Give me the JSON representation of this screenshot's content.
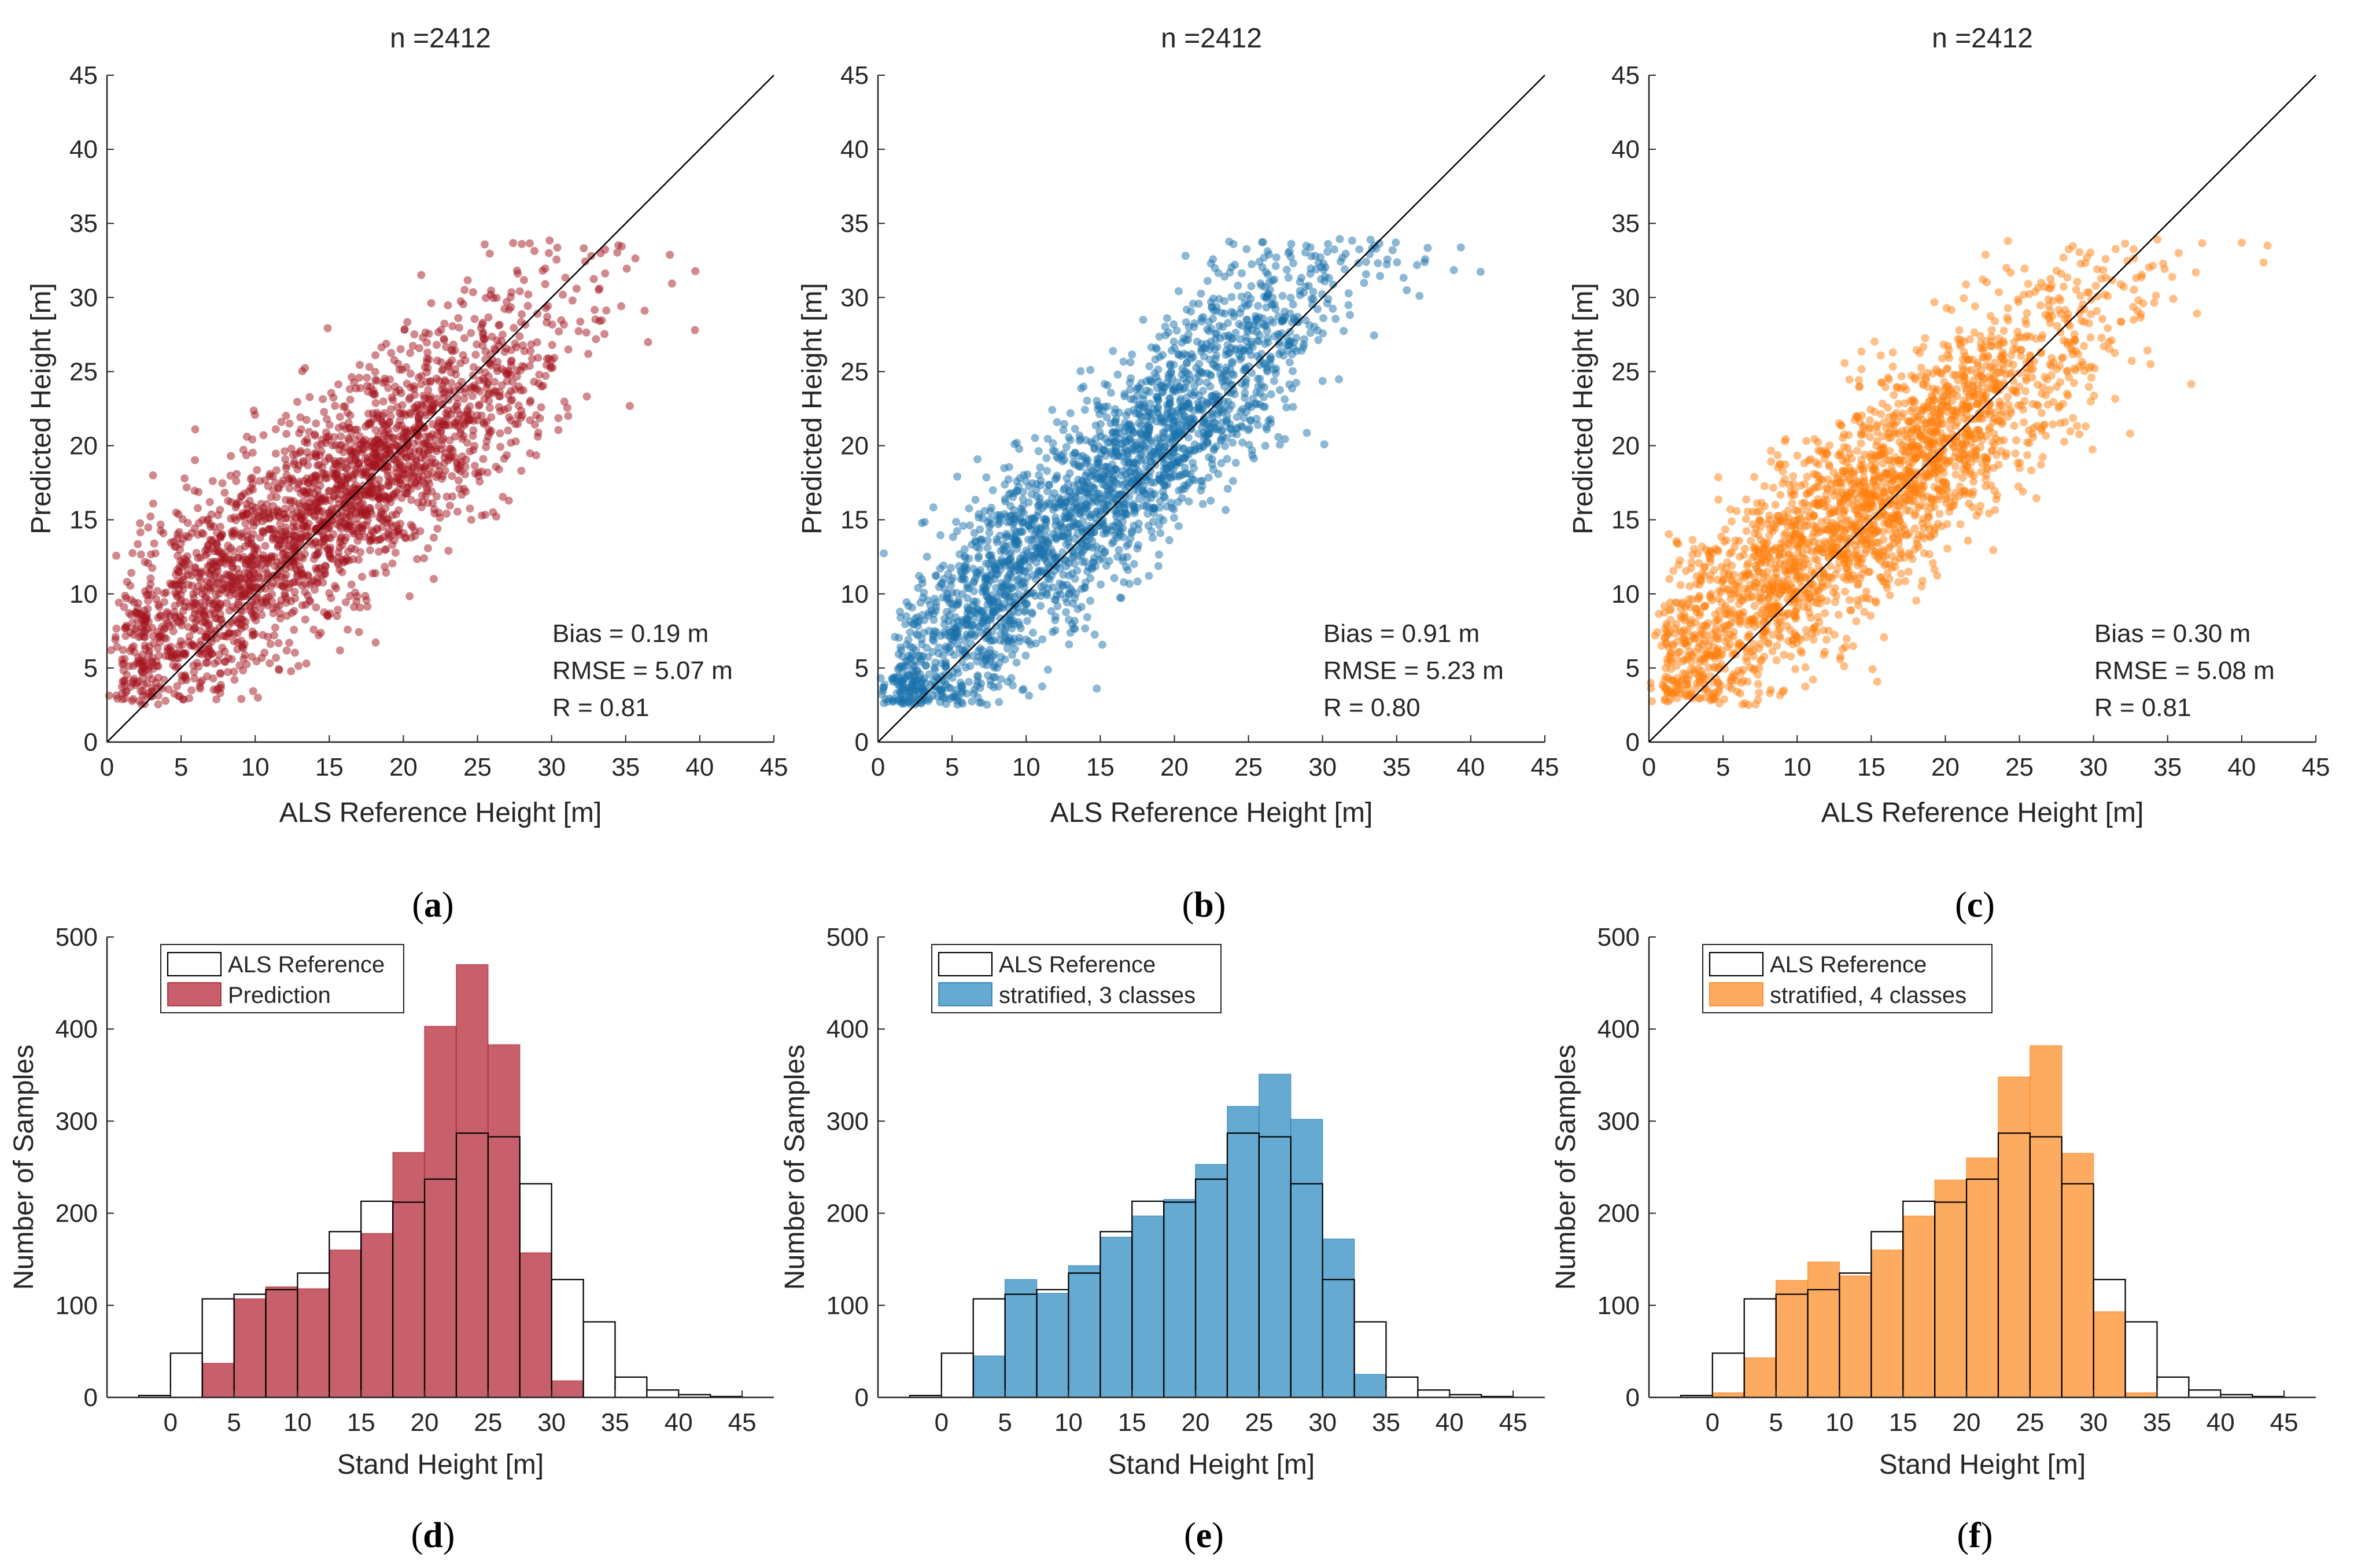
{
  "colors": {
    "a": "#a3141e",
    "b": "#1a72ab",
    "c": "#ff7f0e",
    "a_bar": "#c7606a",
    "b_bar": "#66aad2",
    "c_bar": "#fcab61",
    "axis": "#262626"
  },
  "chart_data": [
    {
      "type": "scatter",
      "panel_label": "a",
      "title": "n =2412",
      "xlabel": "ALS Reference Height [m]",
      "ylabel": "Predicted Height [m]",
      "xlim": [
        0,
        45
      ],
      "ylim": [
        0,
        45
      ],
      "xticks": [
        0,
        5,
        10,
        15,
        20,
        25,
        30,
        35,
        40,
        45
      ],
      "yticks": [
        0,
        5,
        10,
        15,
        20,
        25,
        30,
        35,
        40,
        45
      ],
      "n": 2412,
      "one_to_one_line": true,
      "stats": [
        "Bias = 0.19 m",
        "RMSE = 5.07 m",
        "R = 0.81"
      ],
      "trend": {
        "intercept": 4.9,
        "slope": 0.73
      },
      "point_seed": 11
    },
    {
      "type": "scatter",
      "panel_label": "b",
      "title": "n =2412",
      "xlabel": "ALS Reference Height [m]",
      "ylabel": "Predicted Height [m]",
      "xlim": [
        0,
        45
      ],
      "ylim": [
        0,
        45
      ],
      "xticks": [
        0,
        5,
        10,
        15,
        20,
        25,
        30,
        35,
        40,
        45
      ],
      "yticks": [
        0,
        5,
        10,
        15,
        20,
        25,
        30,
        35,
        40,
        45
      ],
      "n": 2412,
      "one_to_one_line": true,
      "stats": [
        "Bias = 0.91 m",
        "RMSE = 5.23 m",
        "R = 0.80"
      ],
      "trend": {
        "intercept": 2.8,
        "slope": 0.92
      },
      "point_seed": 23
    },
    {
      "type": "scatter",
      "panel_label": "c",
      "title": "n =2412",
      "xlabel": "ALS Reference Height [m]",
      "ylabel": "Predicted Height [m]",
      "xlim": [
        0,
        45
      ],
      "ylim": [
        0,
        45
      ],
      "xticks": [
        0,
        5,
        10,
        15,
        20,
        25,
        30,
        35,
        40,
        45
      ],
      "yticks": [
        0,
        5,
        10,
        15,
        20,
        25,
        30,
        35,
        40,
        45
      ],
      "n": 2412,
      "one_to_one_line": true,
      "stats": [
        "Bias = 0.30 m",
        "RMSE = 5.08 m",
        "R = 0.81"
      ],
      "trend": {
        "intercept": 4.2,
        "slope": 0.8
      },
      "point_seed": 37
    },
    {
      "type": "histogram",
      "panel_label": "d",
      "xlabel": "Stand Height [m]",
      "ylabel": "Number of Samples",
      "xlim": [
        -5,
        47.5
      ],
      "ylim": [
        0,
        500
      ],
      "xticks": [
        0,
        5,
        10,
        15,
        20,
        25,
        30,
        35,
        40,
        45
      ],
      "yticks": [
        0,
        100,
        200,
        300,
        400,
        500
      ],
      "bin_edges": [
        -2.5,
        0,
        2.5,
        5,
        7.5,
        10,
        12.5,
        15,
        17.5,
        20,
        22.5,
        25,
        27.5,
        30,
        32.5,
        35,
        37.5,
        40,
        42.5,
        45
      ],
      "legend": [
        "ALS Reference",
        "Prediction"
      ],
      "reference_counts": [
        2,
        48,
        107,
        112,
        117,
        135,
        180,
        213,
        212,
        237,
        287,
        283,
        232,
        128,
        82,
        22,
        8,
        3,
        1
      ],
      "predicted_counts": [
        0,
        0,
        37,
        107,
        120,
        118,
        160,
        178,
        266,
        403,
        470,
        383,
        157,
        18,
        0,
        0,
        0,
        0,
        0
      ]
    },
    {
      "type": "histogram",
      "panel_label": "e",
      "xlabel": "Stand Height [m]",
      "ylabel": "Number of Samples",
      "xlim": [
        -5,
        47.5
      ],
      "ylim": [
        0,
        500
      ],
      "xticks": [
        0,
        5,
        10,
        15,
        20,
        25,
        30,
        35,
        40,
        45
      ],
      "yticks": [
        0,
        100,
        200,
        300,
        400,
        500
      ],
      "bin_edges": [
        -2.5,
        0,
        2.5,
        5,
        7.5,
        10,
        12.5,
        15,
        17.5,
        20,
        22.5,
        25,
        27.5,
        30,
        32.5,
        35,
        37.5,
        40,
        42.5,
        45
      ],
      "legend": [
        "ALS Reference",
        "stratified, 3 classes"
      ],
      "reference_counts": [
        2,
        48,
        107,
        112,
        117,
        135,
        180,
        213,
        212,
        237,
        287,
        283,
        232,
        128,
        82,
        22,
        8,
        3,
        1
      ],
      "predicted_counts": [
        0,
        0,
        45,
        128,
        113,
        143,
        174,
        197,
        215,
        253,
        316,
        351,
        302,
        172,
        25,
        0,
        0,
        0,
        0
      ]
    },
    {
      "type": "histogram",
      "panel_label": "f",
      "xlabel": "Stand Height [m]",
      "ylabel": "Number of Samples",
      "xlim": [
        -5,
        47.5
      ],
      "ylim": [
        0,
        500
      ],
      "xticks": [
        0,
        5,
        10,
        15,
        20,
        25,
        30,
        35,
        40,
        45
      ],
      "yticks": [
        0,
        100,
        200,
        300,
        400,
        500
      ],
      "bin_edges": [
        -2.5,
        0,
        2.5,
        5,
        7.5,
        10,
        12.5,
        15,
        17.5,
        20,
        22.5,
        25,
        27.5,
        30,
        32.5,
        35,
        37.5,
        40,
        42.5,
        45
      ],
      "legend": [
        "ALS Reference",
        "stratified, 4 classes"
      ],
      "reference_counts": [
        2,
        48,
        107,
        112,
        117,
        135,
        180,
        213,
        212,
        237,
        287,
        283,
        232,
        128,
        82,
        22,
        8,
        3,
        1
      ],
      "predicted_counts": [
        0,
        5,
        43,
        127,
        147,
        132,
        160,
        197,
        236,
        260,
        348,
        382,
        265,
        93,
        5,
        0,
        0,
        0,
        0
      ]
    }
  ]
}
